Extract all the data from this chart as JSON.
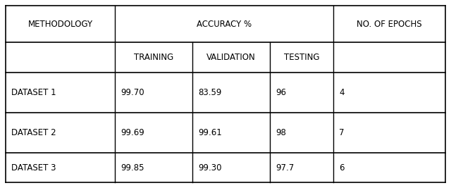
{
  "header_row1": [
    "METHODOLOGY",
    "ACCURACY %",
    "NO. OF EPOCHS"
  ],
  "header_row2": [
    "TRAINING",
    "VALIDATION",
    "TESTING"
  ],
  "rows": [
    [
      "DATASET 1",
      "99.70",
      "83.59",
      "96",
      "4"
    ],
    [
      "DATASET 2",
      "99.69",
      "99.61",
      "98",
      "7"
    ],
    [
      "DATASET 3",
      "99.85",
      "99.30",
      "97.7",
      "6"
    ]
  ],
  "bg_color": "#ffffff",
  "line_color": "#000000",
  "text_color": "#000000",
  "font_size": 8.5
}
